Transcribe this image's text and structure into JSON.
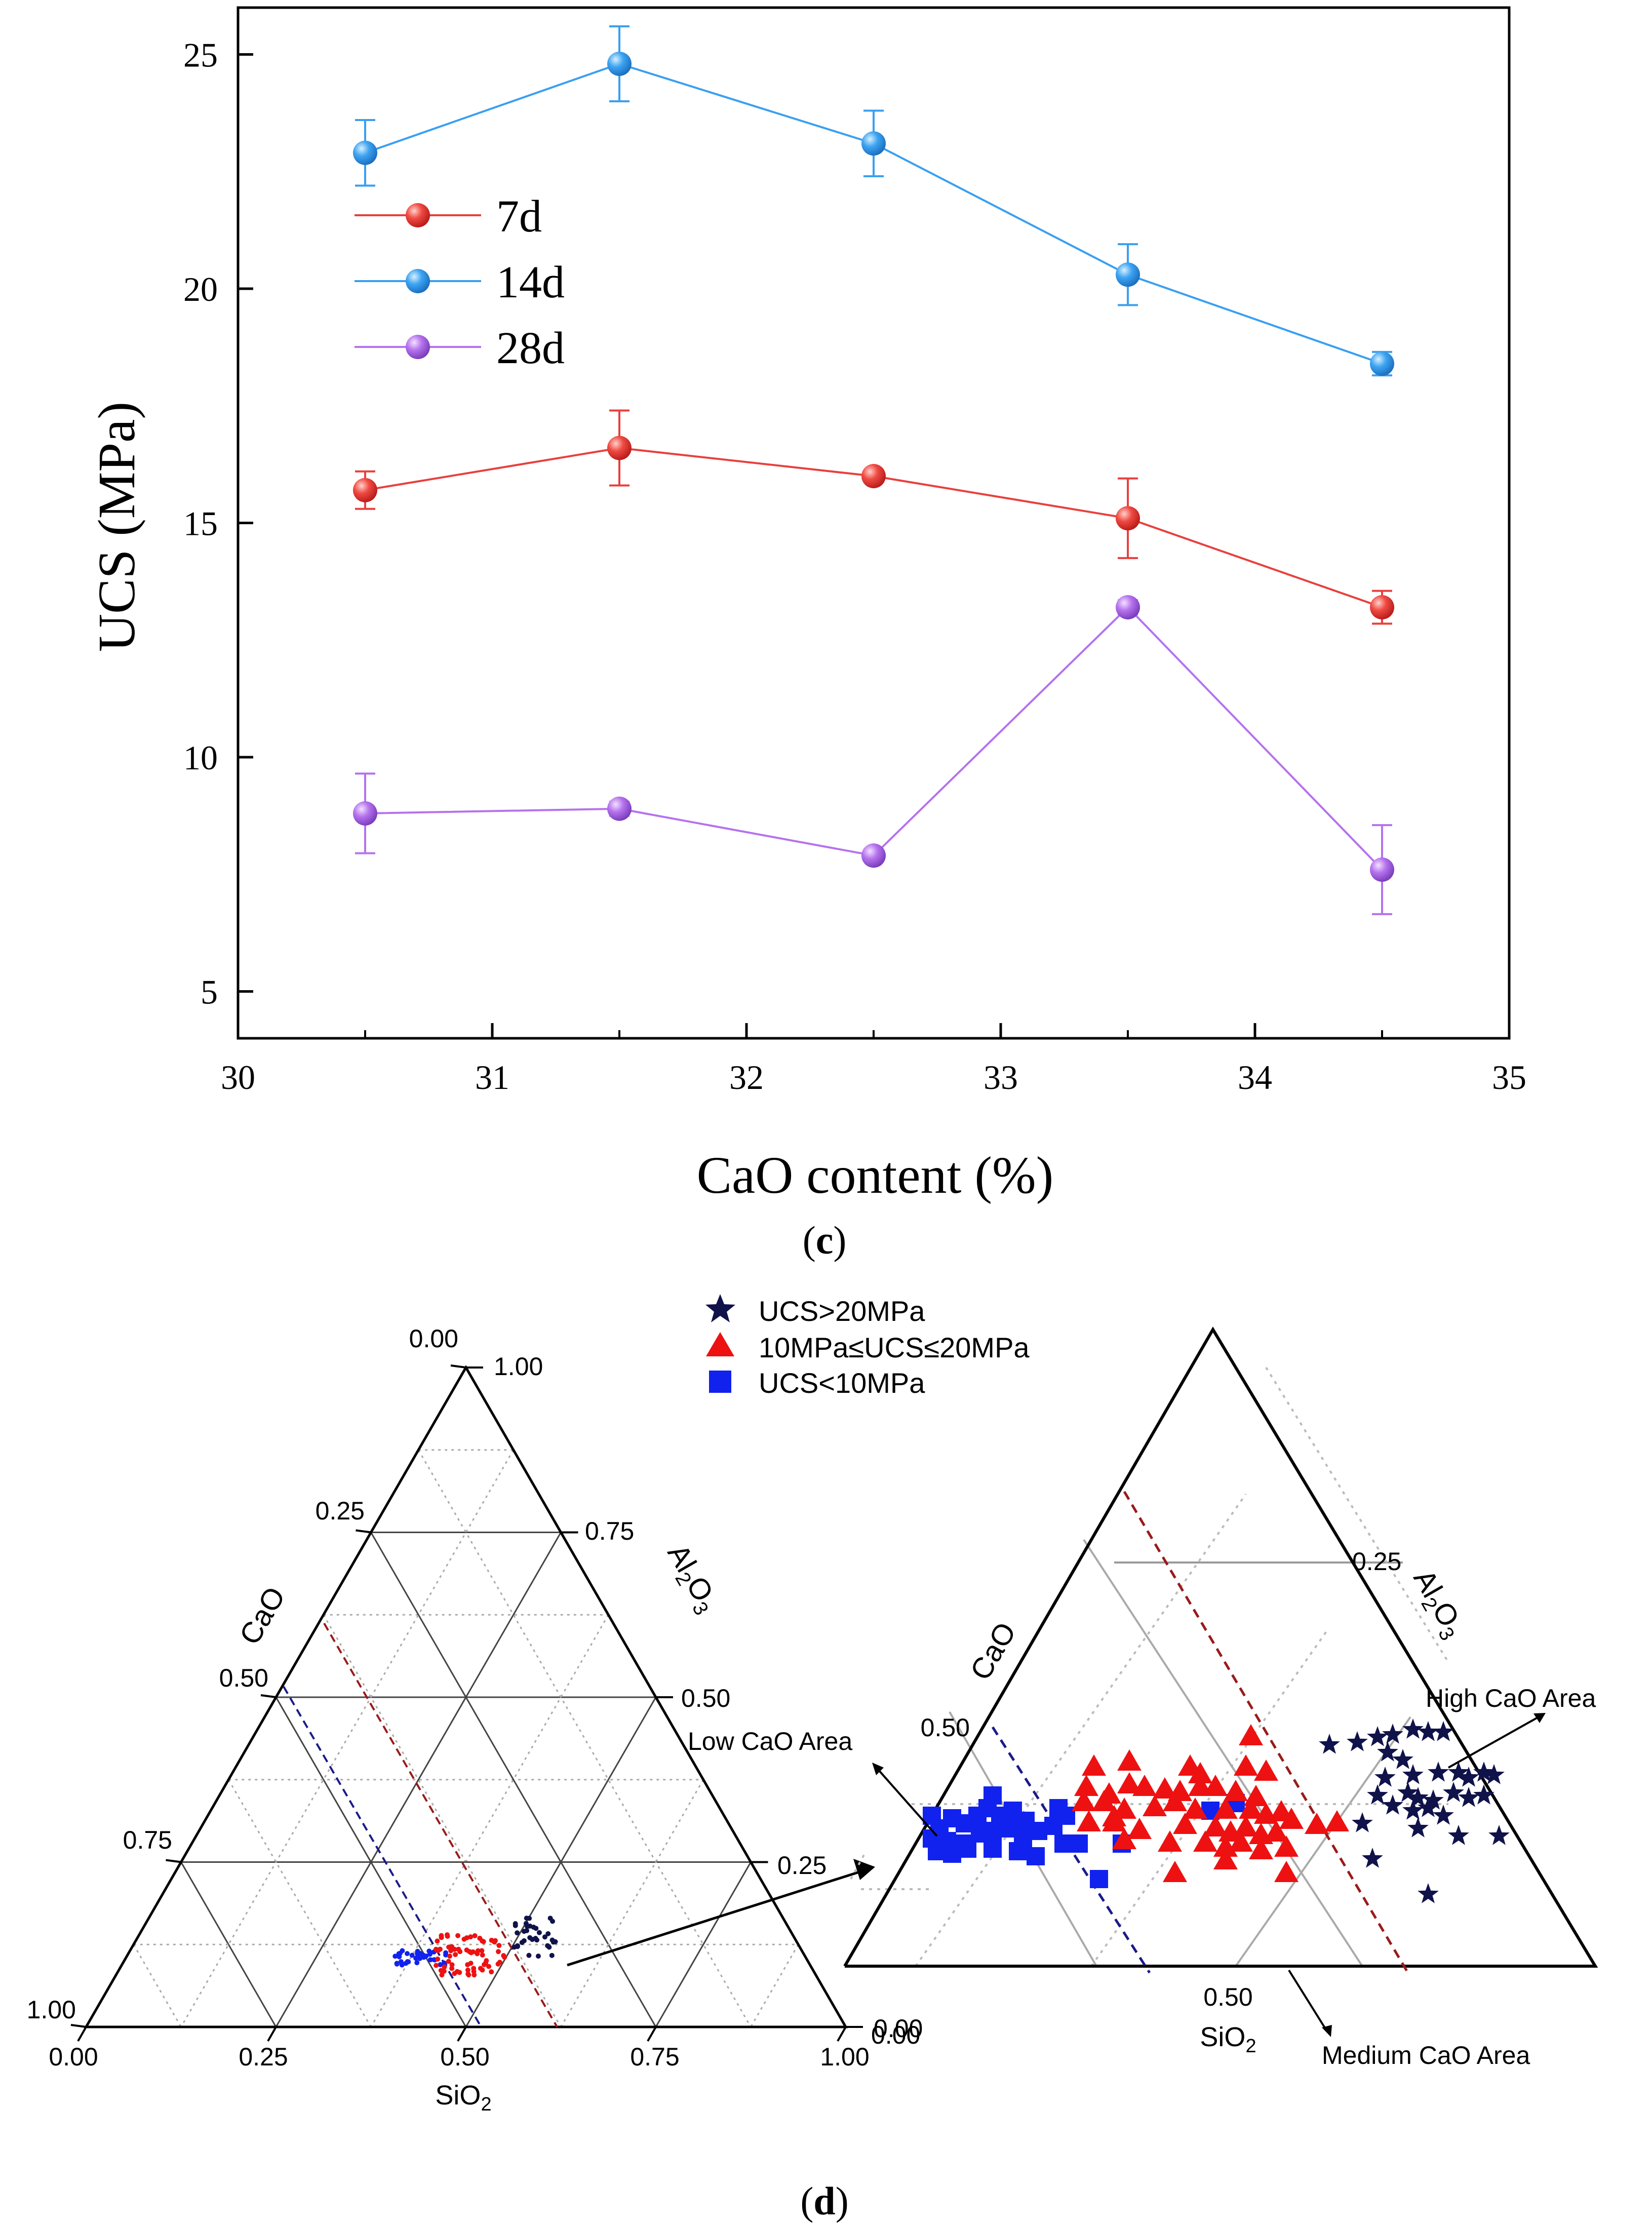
{
  "panel_c": {
    "label": "c",
    "chart_data": {
      "type": "line",
      "xlabel": "CaO content (%)",
      "ylabel": "UCS (MPa)",
      "xlim": [
        30,
        35
      ],
      "ylim": [
        4,
        26
      ],
      "xticks": [
        30,
        31,
        32,
        33,
        34,
        35
      ],
      "yticks": [
        5,
        10,
        15,
        20,
        25
      ],
      "x": [
        30.5,
        31.5,
        32.5,
        33.5,
        34.5
      ],
      "legend_position": "upper-left",
      "series": [
        {
          "name": "7d",
          "color": "#e8403d",
          "values": [
            15.7,
            16.6,
            16.0,
            15.1,
            13.2
          ],
          "errors": [
            0.4,
            0.8,
            0.1,
            0.85,
            0.35
          ]
        },
        {
          "name": "14d",
          "color": "#3a9ff0",
          "values": [
            22.9,
            24.8,
            23.1,
            20.3,
            18.4
          ],
          "errors": [
            0.7,
            0.8,
            0.7,
            0.65,
            0.25
          ]
        },
        {
          "name": "28d",
          "color": "#b572ee",
          "values": [
            8.8,
            8.9,
            7.9,
            13.2,
            7.6
          ],
          "errors": [
            0.85,
            0.15,
            0.1,
            0.15,
            0.95
          ]
        }
      ]
    }
  },
  "panel_d": {
    "label": "d",
    "legend": [
      {
        "name": "UCS>20MPa",
        "marker": "star",
        "color": "#10124a"
      },
      {
        "name": "10MPa≤UCS≤20MPa",
        "marker": "triangle",
        "color": "#ee1111"
      },
      {
        "name": "UCS<10MPa",
        "marker": "square",
        "color": "#1122ee"
      }
    ],
    "chart_data": {
      "type": "scatter",
      "subtype": "ternary",
      "axes": {
        "left": "CaO",
        "right": "Al2O3",
        "bottom": "SiO2"
      },
      "left_ticks": [
        "0.00",
        "0.25",
        "0.50",
        "0.75",
        "1.00"
      ],
      "right_ticks": [
        "1.00",
        "0.75",
        "0.50",
        "0.25",
        "0.00"
      ],
      "bottom_ticks": [
        "0.00",
        "0.25",
        "0.50",
        "0.75",
        "1.00"
      ],
      "zoom_ticks": {
        "left": "0.50",
        "right": "0.25",
        "bottom": "0.50",
        "corner": "0.00"
      },
      "annotations": [
        "Low CaO Area",
        "High CaO Area",
        "Medium CaO Area"
      ]
    }
  }
}
